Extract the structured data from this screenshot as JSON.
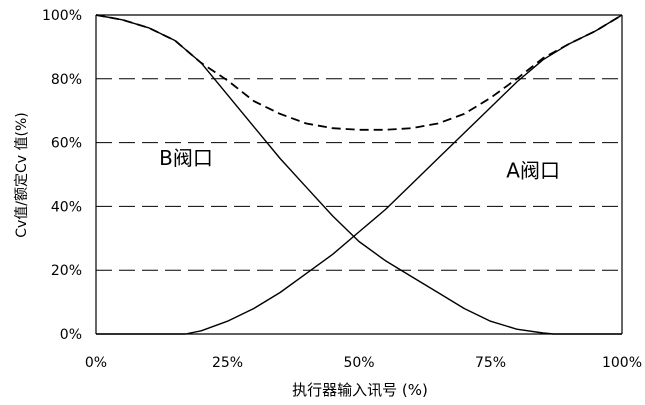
{
  "chart_data": {
    "type": "line",
    "xlabel": "执行器输入讯号 (%)",
    "ylabel": "Cv值/额定Cv 值(%)",
    "xlim": [
      0,
      100
    ],
    "ylim": [
      0,
      100
    ],
    "x_ticks": [
      "0%",
      "25%",
      "50%",
      "75%",
      "100%"
    ],
    "y_ticks": [
      "0%",
      "20%",
      "40%",
      "60%",
      "80%",
      "100%"
    ],
    "grid": "horizontal dashed",
    "annotations": [
      {
        "text": "B阀口",
        "x": 12,
        "y": 53
      },
      {
        "text": "A阀口",
        "x": 78,
        "y": 49
      }
    ],
    "series": [
      {
        "style": "solid",
        "x": [
          0,
          5,
          10,
          15,
          20,
          25,
          30,
          35,
          40,
          45,
          50,
          55,
          60,
          65,
          70,
          75,
          80,
          85,
          87,
          90,
          95,
          100
        ],
        "y": [
          100,
          98.5,
          96,
          92,
          85,
          75,
          65,
          55,
          46,
          37,
          29,
          23,
          18,
          13,
          8,
          4,
          1.5,
          0.3,
          0,
          0,
          0,
          0
        ]
      },
      {
        "style": "solid",
        "x": [
          0,
          5,
          10,
          15,
          17,
          20,
          25,
          30,
          35,
          40,
          45,
          50,
          55,
          60,
          65,
          70,
          75,
          80,
          85,
          90,
          95,
          100
        ],
        "y": [
          0,
          0,
          0,
          0,
          0,
          1,
          4,
          8,
          13,
          19,
          25,
          32,
          39,
          47,
          55,
          63,
          71,
          79,
          86,
          91,
          95,
          100
        ]
      },
      {
        "style": "dashed",
        "x": [
          0,
          5,
          10,
          15,
          20,
          25,
          30,
          35,
          40,
          45,
          50,
          55,
          60,
          65,
          70,
          75,
          80,
          85,
          90,
          95,
          100
        ],
        "y": [
          100,
          98.5,
          96,
          92,
          85,
          79.5,
          73,
          69,
          66,
          64.5,
          64,
          64,
          64.5,
          66,
          69,
          74,
          80,
          86.5,
          91,
          95,
          100
        ]
      }
    ]
  }
}
